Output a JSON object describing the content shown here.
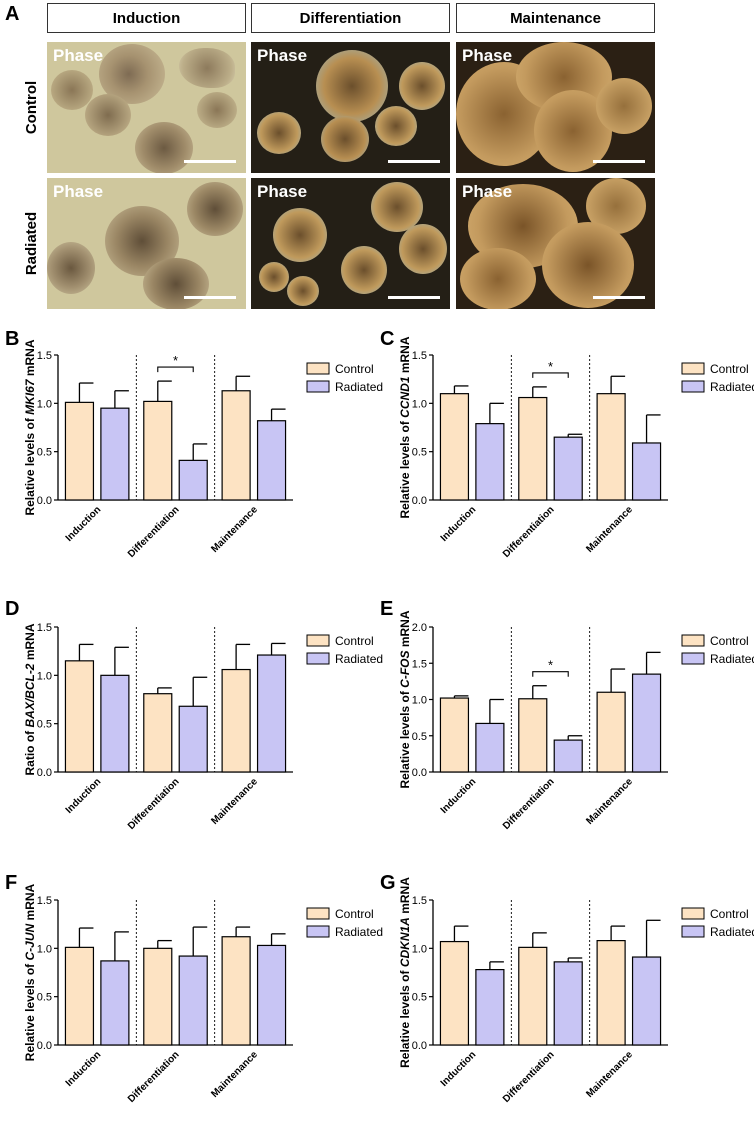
{
  "panel_letters": {
    "A": "A",
    "B": "B",
    "C": "C",
    "D": "D",
    "E": "E",
    "F": "F",
    "G": "G"
  },
  "micrographs": {
    "stages": [
      "Induction",
      "Differentiation",
      "Maintenance"
    ],
    "rows": [
      "Control",
      "Radiated"
    ],
    "image_label": "Phase",
    "colors": {
      "induction_bg": "#cfc79d",
      "differentiation_bg": "#241f16",
      "maintenance_bg": "#2b2014",
      "organoid": "#b98f55"
    }
  },
  "legend": {
    "control": "Control",
    "radiated": "Radiated"
  },
  "colors": {
    "control": "#fde3c3",
    "radiated": "#c8c5f4",
    "outline": "#000000"
  },
  "chart_data": [
    {
      "panel": "B",
      "type": "bar",
      "ylabel_pre": "Relative levels of ",
      "ylabel_italic": "MKI67",
      "ylabel_post": " mRNA",
      "categories": [
        "Induction",
        "Differentiation",
        "Maintenance"
      ],
      "ylim": [
        0,
        1.5
      ],
      "yticks": [
        "0.0",
        "0.5",
        "1.0",
        "1.5"
      ],
      "series": [
        {
          "name": "Control",
          "values": [
            1.01,
            1.02,
            1.13
          ],
          "errors": [
            0.2,
            0.21,
            0.15
          ]
        },
        {
          "name": "Radiated",
          "values": [
            0.95,
            0.41,
            0.82
          ],
          "errors": [
            0.18,
            0.17,
            0.12
          ]
        }
      ],
      "significance": [
        {
          "category": 1,
          "label": "*"
        }
      ]
    },
    {
      "panel": "C",
      "type": "bar",
      "ylabel_pre": "Relative levels of ",
      "ylabel_italic": "CCND1",
      "ylabel_post": " mRNA",
      "categories": [
        "Induction",
        "Differentiation",
        "Maintenance"
      ],
      "ylim": [
        0,
        1.5
      ],
      "yticks": [
        "0.0",
        "0.5",
        "1.0",
        "1.5"
      ],
      "series": [
        {
          "name": "Control",
          "values": [
            1.1,
            1.06,
            1.1
          ],
          "errors": [
            0.08,
            0.11,
            0.18
          ]
        },
        {
          "name": "Radiated",
          "values": [
            0.79,
            0.65,
            0.59
          ],
          "errors": [
            0.21,
            0.03,
            0.29
          ]
        }
      ],
      "significance": [
        {
          "category": 1,
          "label": "*"
        }
      ]
    },
    {
      "panel": "D",
      "type": "bar",
      "ylabel_pre": "Ratio of ",
      "ylabel_italic": "BAX/BCL-2",
      "ylabel_post": " mRNA",
      "categories": [
        "Induction",
        "Differentiation",
        "Maintenance"
      ],
      "ylim": [
        0,
        1.5
      ],
      "yticks": [
        "0.0",
        "0.5",
        "1.0",
        "1.5"
      ],
      "series": [
        {
          "name": "Control",
          "values": [
            1.15,
            0.81,
            1.06
          ],
          "errors": [
            0.17,
            0.06,
            0.26
          ]
        },
        {
          "name": "Radiated",
          "values": [
            1.0,
            0.68,
            1.21
          ],
          "errors": [
            0.29,
            0.3,
            0.12
          ]
        }
      ],
      "significance": []
    },
    {
      "panel": "E",
      "type": "bar",
      "ylabel_pre": "Relative levels of ",
      "ylabel_italic": "C-FOS",
      "ylabel_post": " mRNA",
      "categories": [
        "Induction",
        "Differentiation",
        "Maintenance"
      ],
      "ylim": [
        0,
        2.0
      ],
      "yticks": [
        "0.0",
        "0.5",
        "1.0",
        "1.5",
        "2.0"
      ],
      "series": [
        {
          "name": "Control",
          "values": [
            1.02,
            1.01,
            1.1
          ],
          "errors": [
            0.03,
            0.18,
            0.32
          ]
        },
        {
          "name": "Radiated",
          "values": [
            0.67,
            0.44,
            1.35
          ],
          "errors": [
            0.33,
            0.06,
            0.3
          ]
        }
      ],
      "significance": [
        {
          "category": 1,
          "label": "*"
        }
      ]
    },
    {
      "panel": "F",
      "type": "bar",
      "ylabel_pre": "Relative levels of ",
      "ylabel_italic": "C-JUN",
      "ylabel_post": " mRNA",
      "categories": [
        "Induction",
        "Differentiation",
        "Maintenance"
      ],
      "ylim": [
        0,
        1.5
      ],
      "yticks": [
        "0.0",
        "0.5",
        "1.0",
        "1.5"
      ],
      "series": [
        {
          "name": "Control",
          "values": [
            1.01,
            1.0,
            1.12
          ],
          "errors": [
            0.2,
            0.08,
            0.1
          ]
        },
        {
          "name": "Radiated",
          "values": [
            0.87,
            0.92,
            1.03
          ],
          "errors": [
            0.3,
            0.3,
            0.12
          ]
        }
      ],
      "significance": []
    },
    {
      "panel": "G",
      "type": "bar",
      "ylabel_pre": "Relative levels of ",
      "ylabel_italic": "CDKN1A",
      "ylabel_post": " mRNA",
      "categories": [
        "Induction",
        "Differentiation",
        "Maintenance"
      ],
      "ylim": [
        0,
        1.5
      ],
      "yticks": [
        "0.0",
        "0.5",
        "1.0",
        "1.5"
      ],
      "series": [
        {
          "name": "Control",
          "values": [
            1.07,
            1.01,
            1.08
          ],
          "errors": [
            0.16,
            0.15,
            0.15
          ]
        },
        {
          "name": "Radiated",
          "values": [
            0.78,
            0.86,
            0.91
          ],
          "errors": [
            0.08,
            0.04,
            0.38
          ]
        }
      ],
      "significance": []
    }
  ]
}
